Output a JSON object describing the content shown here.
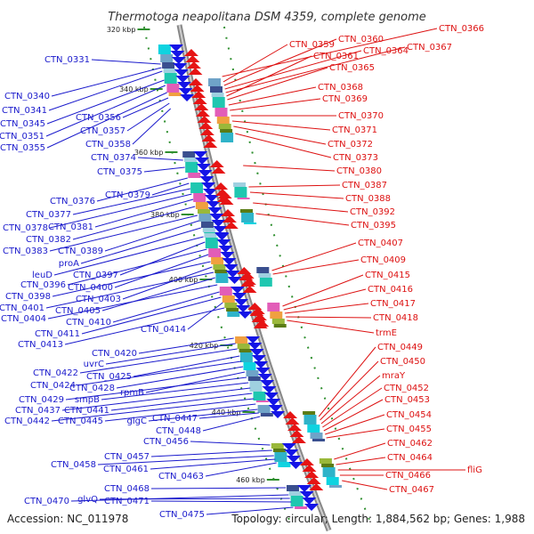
{
  "title": "Thermotoga neapolitana DSM 4359, complete genome",
  "footer": {
    "accession": "Accession: NC_011978",
    "summary": "Topology: circular; Length: 1,884,562 bp; Genes: 1,988"
  },
  "colors": {
    "left_label": "#1a1acc",
    "right_label": "#dd1111",
    "forward_strand": "#1414e6",
    "reverse_strand": "#e61414",
    "backbone": "#888888",
    "tick": "#2f8f2f"
  },
  "scale_ticks": [
    "320 kbp",
    "340 kbp",
    "360 kbp",
    "380 kbp",
    "400 kbp",
    "420 kbp",
    "440 kbp",
    "460 kbp"
  ],
  "left_labels": [
    "CTN_0331",
    "CTN_0340",
    "CTN_0341",
    "CTN_0345",
    "CTN_0351",
    "CTN_0355",
    "CTN_0356",
    "CTN_0357",
    "CTN_0358",
    "CTN_0374",
    "CTN_0375",
    "CTN_0376",
    "CTN_0379",
    "CTN_0377",
    "CTN_0378",
    "CTN_0381",
    "CTN_0382",
    "CTN_0383",
    "CTN_0389",
    "proA",
    "leuD",
    "CTN_0397",
    "CTN_0396",
    "CTN_0400",
    "CTN_0398",
    "CTN_0403",
    "CTN_0401",
    "CTN_0405",
    "CTN_0404",
    "CTN_0410",
    "CTN_0411",
    "CTN_0414",
    "CTN_0413",
    "CTN_0420",
    "uvrC",
    "CTN_0422",
    "CTN_0425",
    "CTN_0424",
    "CTN_0428",
    "rpmB",
    "CTN_0429",
    "smpB",
    "CTN_0437",
    "CTN_0441",
    "CTN_0442",
    "CTN_0445",
    "glgC",
    "CTN_0447",
    "CTN_0448",
    "CTN_0456",
    "CTN_0457",
    "CTN_0458",
    "CTN_0461",
    "CTN_0463",
    "CTN_0468",
    "CTN_0470",
    "glvQ",
    "CTN_0471",
    "CTN_0475"
  ],
  "right_labels": [
    "CTN_0366",
    "CTN_0359",
    "CTN_0360",
    "CTN_0364",
    "CTN_0367",
    "CTN_0361",
    "CTN_0365",
    "CTN_0368",
    "CTN_0369",
    "CTN_0370",
    "CTN_0371",
    "CTN_0372",
    "CTN_0373",
    "CTN_0380",
    "CTN_0387",
    "CTN_0388",
    "CTN_0392",
    "CTN_0395",
    "CTN_0407",
    "CTN_0409",
    "CTN_0415",
    "CTN_0416",
    "CTN_0417",
    "CTN_0418",
    "trmE",
    "CTN_0449",
    "CTN_0450",
    "mraY",
    "CTN_0452",
    "CTN_0453",
    "CTN_0454",
    "CTN_0455",
    "CTN_0462",
    "CTN_0464",
    "fliG",
    "CTN_0466",
    "CTN_0467"
  ]
}
